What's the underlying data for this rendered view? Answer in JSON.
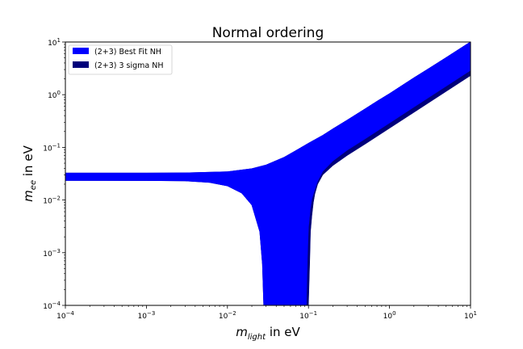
{
  "chart_data": {
    "type": "area",
    "title": "Normal ordering",
    "xlabel": {
      "symbol": "m",
      "subscript": "light",
      "suffix": " in eV"
    },
    "ylabel": {
      "symbol": "m",
      "subscript": "ee",
      "suffix": " in eV"
    },
    "xscale": "log",
    "yscale": "log",
    "xlim": [
      0.0001,
      10
    ],
    "ylim": [
      0.0001,
      10
    ],
    "x_ticks": [
      {
        "value": 0.0001,
        "base": "10",
        "exp": "−4"
      },
      {
        "value": 0.001,
        "base": "10",
        "exp": "−3"
      },
      {
        "value": 0.01,
        "base": "10",
        "exp": "−2"
      },
      {
        "value": 0.1,
        "base": "10",
        "exp": "−1"
      },
      {
        "value": 1,
        "base": "10",
        "exp": "0"
      },
      {
        "value": 10,
        "base": "10",
        "exp": "1"
      }
    ],
    "y_ticks": [
      {
        "value": 0.0001,
        "base": "10",
        "exp": "−4"
      },
      {
        "value": 0.001,
        "base": "10",
        "exp": "−3"
      },
      {
        "value": 0.01,
        "base": "10",
        "exp": "−2"
      },
      {
        "value": 0.1,
        "base": "10",
        "exp": "−1"
      },
      {
        "value": 1,
        "base": "10",
        "exp": "0"
      },
      {
        "value": 10,
        "base": "10",
        "exp": "1"
      }
    ],
    "legend_position": "top-left",
    "series": [
      {
        "name": "(2+3) 3 sigma NH",
        "color": "#00007a",
        "upper": {
          "x": [
            0.0001,
            0.001,
            0.003,
            0.01,
            0.02,
            0.03,
            0.05,
            0.07,
            0.1,
            0.15,
            0.2,
            0.3,
            0.5,
            0.7,
            1,
            2,
            3,
            5,
            7,
            10
          ],
          "y": [
            0.0326,
            0.0327,
            0.0329,
            0.0345,
            0.0395,
            0.0465,
            0.065,
            0.087,
            0.12,
            0.17,
            0.225,
            0.33,
            0.54,
            0.75,
            1.05,
            2.1,
            3.1,
            5.1,
            7.1,
            10.1
          ]
        },
        "lower": {
          "x": [
            0.0001,
            0.001,
            0.003,
            0.006,
            0.01,
            0.015,
            0.02,
            0.025,
            0.027,
            0.028,
            0.1,
            0.104,
            0.106,
            0.11,
            0.115,
            0.12,
            0.13,
            0.15,
            0.2,
            0.3,
            0.5,
            1,
            2,
            5,
            10
          ],
          "y": [
            0.0234,
            0.0233,
            0.023,
            0.0215,
            0.0185,
            0.0135,
            0.008,
            0.0025,
            0.0006,
            0.0001,
            0.0001,
            0.0008,
            0.0025,
            0.005,
            0.009,
            0.013,
            0.02,
            0.03,
            0.045,
            0.07,
            0.115,
            0.23,
            0.46,
            1.15,
            2.3
          ]
        }
      },
      {
        "name": "(2+3) Best Fit NH",
        "color": "#0000ff",
        "upper": {
          "x": [
            0.0001,
            0.001,
            0.003,
            0.01,
            0.02,
            0.03,
            0.05,
            0.07,
            0.1,
            0.15,
            0.2,
            0.3,
            0.5,
            0.7,
            1,
            2,
            3,
            5,
            7,
            10
          ],
          "y": [
            0.0326,
            0.0327,
            0.0329,
            0.0345,
            0.0395,
            0.0465,
            0.065,
            0.087,
            0.12,
            0.17,
            0.225,
            0.33,
            0.54,
            0.75,
            1.05,
            2.1,
            3.1,
            5.1,
            7.1,
            10.1
          ]
        },
        "lower": {
          "x": [
            0.0001,
            0.001,
            0.003,
            0.006,
            0.01,
            0.015,
            0.02,
            0.025,
            0.027,
            0.028,
            0.094,
            0.097,
            0.1,
            0.105,
            0.11,
            0.12,
            0.13,
            0.15,
            0.2,
            0.3,
            0.5,
            1,
            2,
            5,
            10
          ],
          "y": [
            0.0234,
            0.0233,
            0.023,
            0.0215,
            0.0185,
            0.0135,
            0.008,
            0.0025,
            0.0006,
            0.0001,
            0.0001,
            0.0008,
            0.003,
            0.0065,
            0.0105,
            0.016,
            0.023,
            0.035,
            0.055,
            0.088,
            0.145,
            0.29,
            0.58,
            1.45,
            2.9
          ]
        }
      }
    ]
  }
}
